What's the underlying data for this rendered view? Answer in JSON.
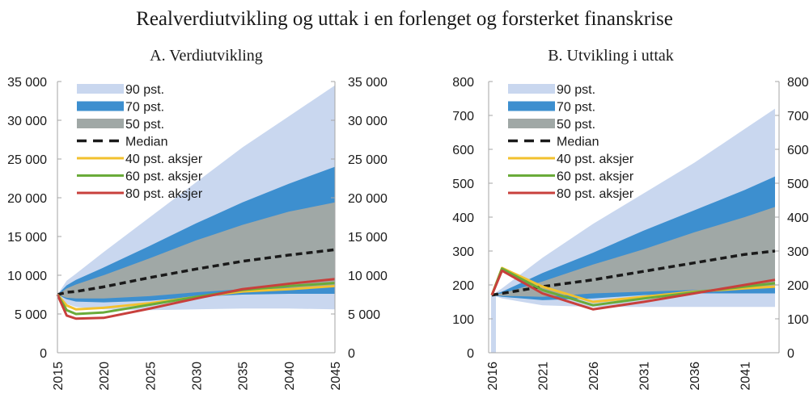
{
  "title": "Realverdiutvikling og uttak i en forlenget og forsterket finanskrise",
  "colors": {
    "band90": "#c9d7ef",
    "band70": "#3d8fcf",
    "band50": "#a0a8a6",
    "median": "#1a1a1a",
    "aksjer40": "#f2c12e",
    "aksjer60": "#6aab3a",
    "aksjer80": "#c8403c",
    "axis": "#a6a6a6"
  },
  "legend": [
    {
      "key": "band90",
      "label": "90 pst.",
      "kind": "band"
    },
    {
      "key": "band70",
      "label": "70 pst.",
      "kind": "band"
    },
    {
      "key": "band50",
      "label": "50 pst.",
      "kind": "band"
    },
    {
      "key": "median",
      "label": "Median",
      "kind": "dash"
    },
    {
      "key": "aksjer40",
      "label": "40 pst. aksjer",
      "kind": "line"
    },
    {
      "key": "aksjer60",
      "label": "60 pst. aksjer",
      "kind": "line"
    },
    {
      "key": "aksjer80",
      "label": "80 pst. aksjer",
      "kind": "line"
    }
  ],
  "chart_data": [
    {
      "type": "area",
      "title": "A. Verdiutvikling",
      "xlabel": "",
      "ylabel": "",
      "ylim": [
        0,
        35000
      ],
      "xlim": [
        2015,
        2045
      ],
      "yticks": [
        0,
        5000,
        10000,
        15000,
        20000,
        25000,
        30000,
        35000
      ],
      "ytick_labels": [
        "0",
        "5 000",
        "10 000",
        "15 000",
        "20 000",
        "25 000",
        "30 000",
        "35 000"
      ],
      "xticks": [
        2015,
        2020,
        2025,
        2030,
        2035,
        2040,
        2045
      ],
      "xtick_labels": [
        "2015",
        "2020",
        "2025",
        "2030",
        "2035",
        "2040",
        "2045"
      ],
      "grid": false,
      "legend_position": "top-left",
      "x": [
        2015,
        2016,
        2017,
        2020,
        2025,
        2030,
        2035,
        2040,
        2045
      ],
      "bands": {
        "band90": {
          "low": [
            7500,
            6300,
            5900,
            5600,
            5500,
            5600,
            5700,
            5700,
            5600
          ],
          "high": [
            7500,
            9300,
            10200,
            13000,
            17500,
            22000,
            26500,
            30500,
            34500
          ]
        },
        "band70": {
          "low": [
            7500,
            6900,
            6600,
            6500,
            6700,
            7200,
            7500,
            7600,
            7600
          ],
          "high": [
            7500,
            8700,
            9400,
            11000,
            13800,
            16700,
            19400,
            21800,
            24000
          ]
        },
        "band50": {
          "low": [
            7500,
            7100,
            7000,
            7000,
            7300,
            7800,
            8200,
            8400,
            8500
          ],
          "high": [
            7500,
            8300,
            8800,
            10000,
            12200,
            14500,
            16500,
            18200,
            19400
          ]
        }
      },
      "series": [
        {
          "key": "median",
          "name": "Median",
          "values": [
            7500,
            7800,
            7900,
            8500,
            9700,
            10800,
            11800,
            12600,
            13300
          ]
        },
        {
          "key": "aksjer40",
          "name": "40 pst. aksjer",
          "values": [
            7500,
            6100,
            5600,
            5800,
            6400,
            7200,
            7900,
            8200,
            8600
          ]
        },
        {
          "key": "aksjer60",
          "name": "60 pst. aksjer",
          "values": [
            7500,
            5500,
            5000,
            5200,
            6200,
            7200,
            8100,
            8600,
            9000
          ]
        },
        {
          "key": "aksjer80",
          "name": "80 pst. aksjer",
          "values": [
            7500,
            4800,
            4400,
            4500,
            5700,
            7000,
            8200,
            8900,
            9500
          ]
        }
      ]
    },
    {
      "type": "area",
      "title": "B. Utvikling i uttak",
      "xlabel": "",
      "ylabel": "",
      "ylim": [
        0,
        800
      ],
      "xlim": [
        2016,
        2044
      ],
      "yticks": [
        0,
        100,
        200,
        300,
        400,
        500,
        600,
        700,
        800
      ],
      "ytick_labels": [
        "0",
        "100",
        "200",
        "300",
        "400",
        "500",
        "600",
        "700",
        "800"
      ],
      "xticks": [
        2016,
        2021,
        2026,
        2031,
        2036,
        2041
      ],
      "xtick_labels": [
        "2016",
        "2021",
        "2026",
        "2031",
        "2036",
        "2041"
      ],
      "grid": false,
      "legend_position": "top-left",
      "x": [
        2016,
        2017,
        2021,
        2026,
        2031,
        2036,
        2041,
        2044
      ],
      "bands": {
        "band90": {
          "low": [
            170,
            160,
            140,
            135,
            135,
            135,
            135,
            135
          ],
          "high": [
            170,
            190,
            280,
            380,
            470,
            560,
            660,
            720
          ]
        },
        "band70": {
          "low": [
            170,
            165,
            155,
            160,
            170,
            175,
            175,
            175
          ],
          "high": [
            170,
            180,
            235,
            295,
            360,
            420,
            480,
            520
          ]
        },
        "band50": {
          "low": [
            170,
            168,
            165,
            175,
            180,
            185,
            190,
            195
          ],
          "high": [
            170,
            175,
            210,
            260,
            305,
            355,
            400,
            430
          ]
        }
      },
      "series": [
        {
          "key": "median",
          "name": "Median",
          "values": [
            170,
            175,
            195,
            215,
            240,
            265,
            290,
            300
          ]
        },
        {
          "key": "aksjer40",
          "name": "40 pst. aksjer",
          "values": [
            170,
            250,
            195,
            150,
            165,
            180,
            190,
            195
          ]
        },
        {
          "key": "aksjer60",
          "name": "60 pst. aksjer",
          "values": [
            170,
            248,
            185,
            140,
            160,
            178,
            195,
            205
          ]
        },
        {
          "key": "aksjer80",
          "name": "80 pst. aksjer",
          "values": [
            170,
            242,
            175,
            128,
            150,
            175,
            200,
            215
          ]
        }
      ]
    }
  ]
}
